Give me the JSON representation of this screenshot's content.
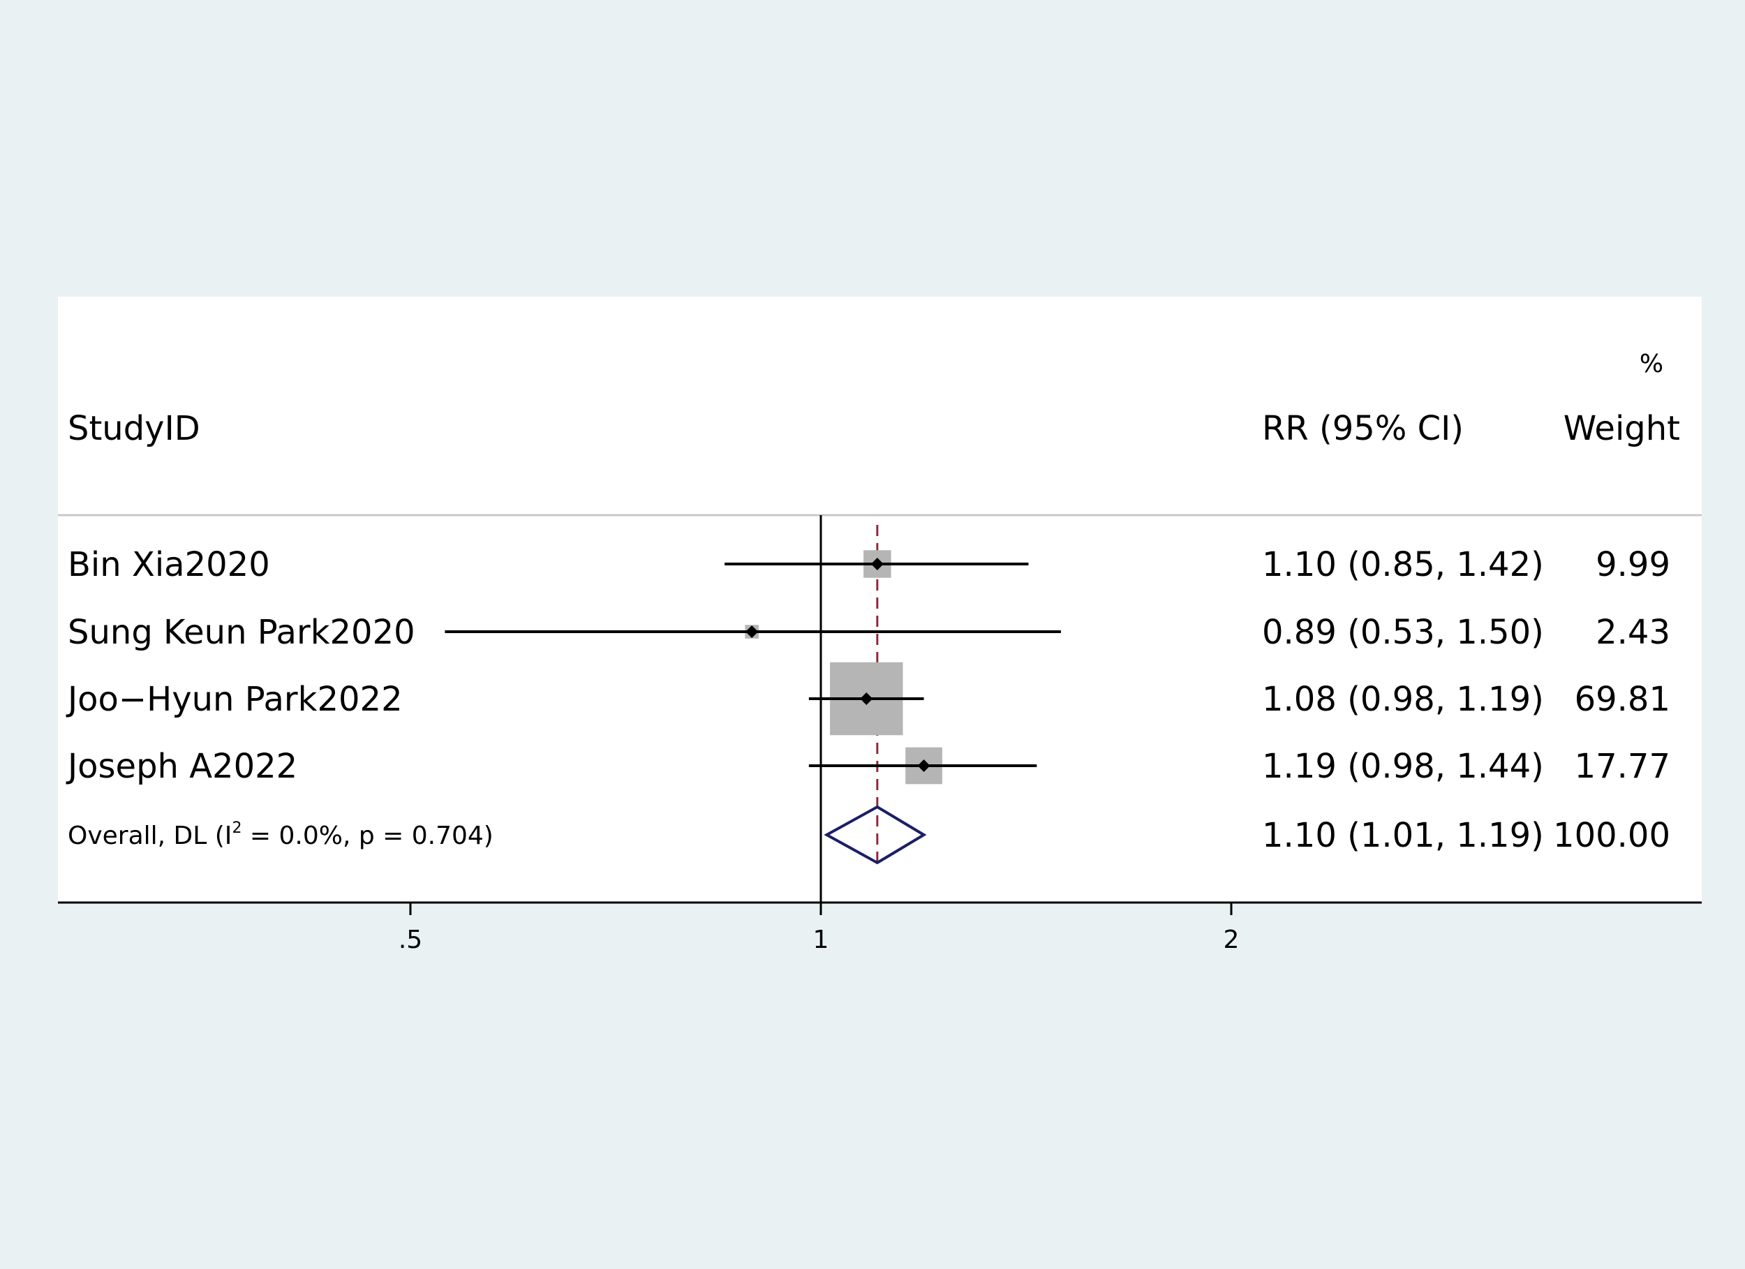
{
  "chart_data": {
    "type": "forest",
    "headers": {
      "study": "StudyID",
      "effect": "RR (95% CI)",
      "weight_top": "%",
      "weight": "Weight"
    },
    "studies": [
      {
        "label": "Bin Xia2020",
        "rr": 1.1,
        "lower": 0.85,
        "upper": 1.42,
        "ci_text": "1.10 (0.85, 1.42)",
        "weight": 9.99,
        "weight_text": "9.99"
      },
      {
        "label": "Sung Keun Park2020",
        "rr": 0.89,
        "lower": 0.53,
        "upper": 1.5,
        "ci_text": "0.89 (0.53, 1.50)",
        "weight": 2.43,
        "weight_text": "2.43"
      },
      {
        "label": "Joo−Hyun Park2022",
        "rr": 1.08,
        "lower": 0.98,
        "upper": 1.19,
        "ci_text": "1.08 (0.98, 1.19)",
        "weight": 69.81,
        "weight_text": "69.81"
      },
      {
        "label": "Joseph A2022",
        "rr": 1.19,
        "lower": 0.98,
        "upper": 1.44,
        "ci_text": "1.19 (0.98, 1.44)",
        "weight": 17.77,
        "weight_text": "17.77"
      }
    ],
    "overall": {
      "label_prefix": "Overall, DL (I",
      "label_sup": "2",
      "label_suffix": " = 0.0%, p = 0.704)",
      "rr": 1.1,
      "lower": 1.01,
      "upper": 1.19,
      "ci_text": "1.10 (1.01, 1.19)",
      "weight_text": "100.00"
    },
    "x_scale": "log",
    "null_value": 1,
    "xticks": [
      {
        "value": 0.5,
        "label": ".5"
      },
      {
        "value": 1,
        "label": "1"
      },
      {
        "value": 2,
        "label": "2"
      }
    ],
    "colors": {
      "page_background": "#e9f1f3",
      "plot_background": "#ffffff",
      "weight_box": "#b5b5b5",
      "ci_line": "#000000",
      "point": "#000000",
      "overall_diamond": "#1a1f66",
      "pooled_line": "#8b2a3a",
      "header_rule": "#c8c8c8"
    }
  }
}
